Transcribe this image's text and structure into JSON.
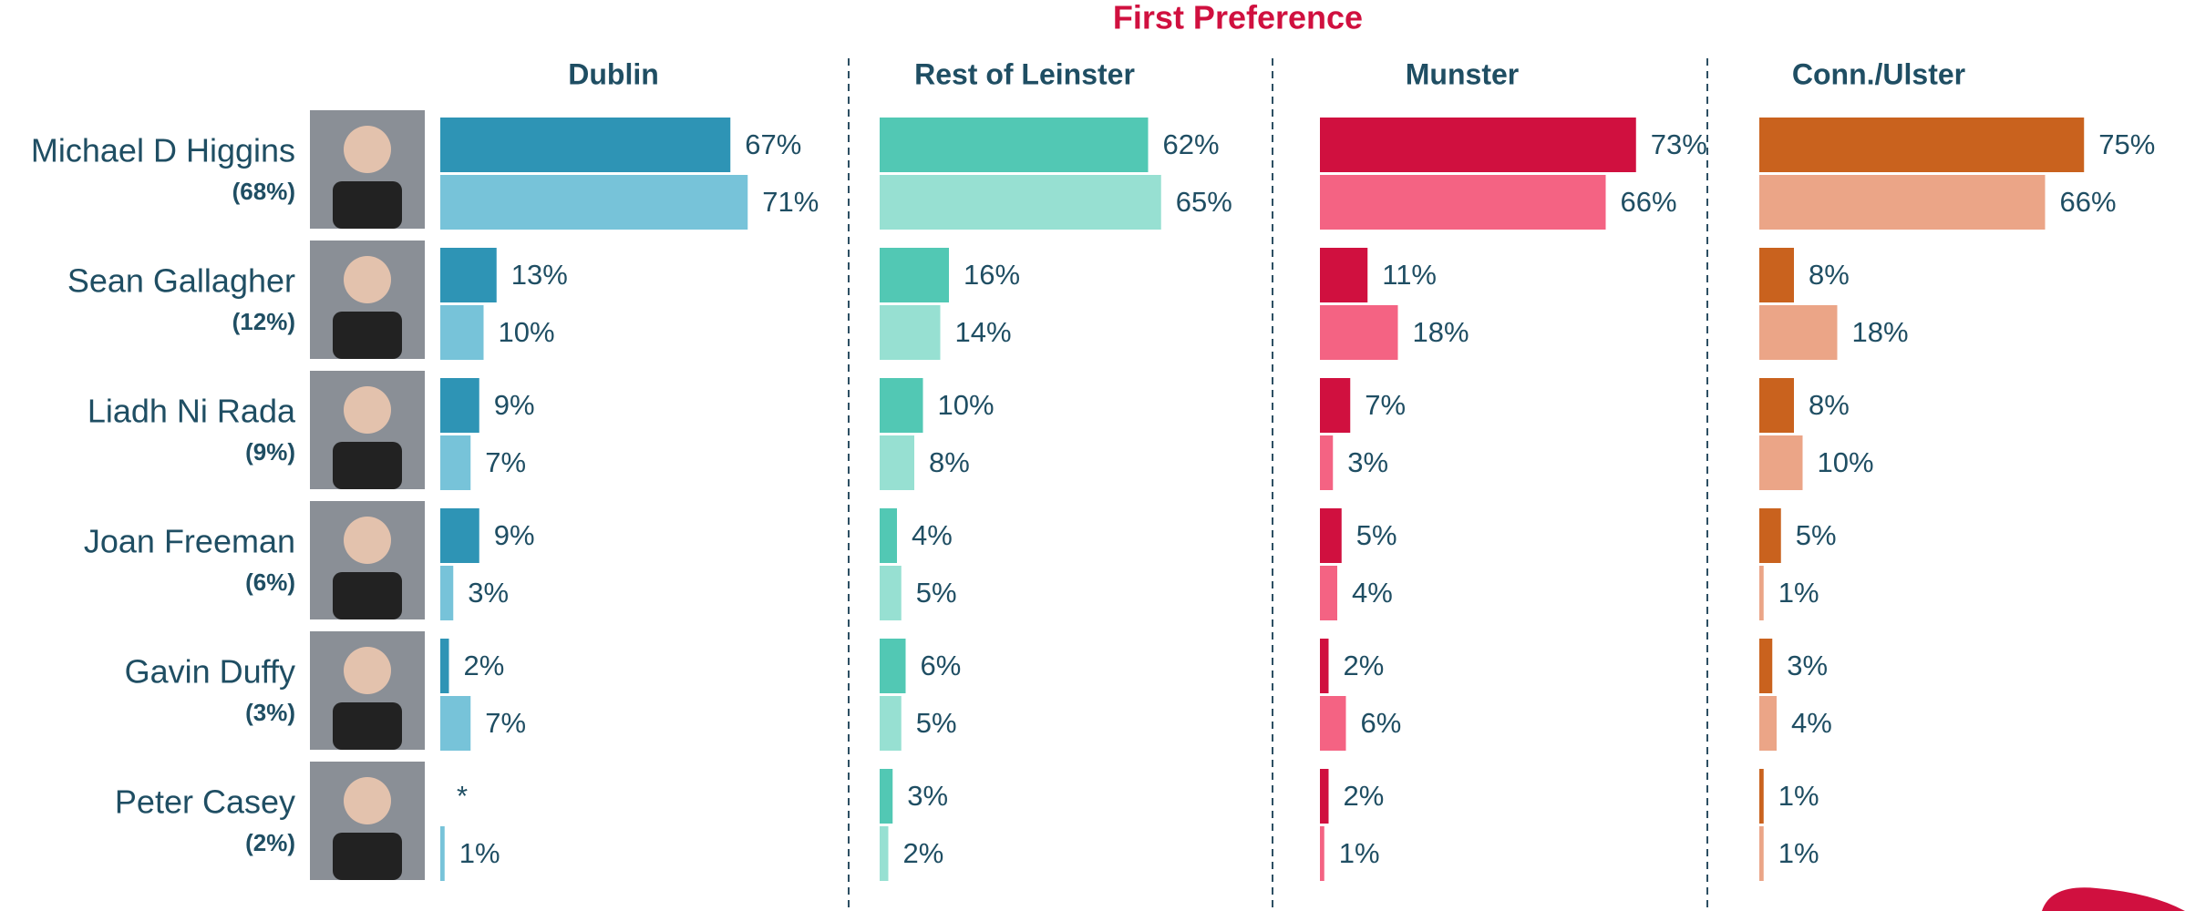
{
  "chart_data": {
    "type": "bar",
    "orientation": "horizontal",
    "title": "First Preference",
    "categories": [
      "Michael D Higgins",
      "Sean Gallagher",
      "Liadh Ni Rada",
      "Joan Freeman",
      "Gavin Duffy",
      "Peter Casey"
    ],
    "category_notes": [
      "(68%)",
      "(12%)",
      "(9%)",
      "(6%)",
      "(3%)",
      "(2%)"
    ],
    "panels": [
      {
        "title": "Dublin",
        "series": [
          {
            "color": "#2e94b5",
            "values": [
              67,
              13,
              9,
              9,
              2,
              null
            ],
            "value_labels": [
              "67%",
              "13%",
              "9%",
              "9%",
              "2%",
              "*"
            ]
          },
          {
            "color": "#77c3d9",
            "values": [
              71,
              10,
              7,
              3,
              7,
              1
            ],
            "value_labels": [
              "71%",
              "10%",
              "7%",
              "3%",
              "7%",
              "1%"
            ]
          }
        ]
      },
      {
        "title": "Rest of Leinster",
        "series": [
          {
            "color": "#52c8b4",
            "values": [
              62,
              16,
              10,
              4,
              6,
              3
            ],
            "value_labels": [
              "62%",
              "16%",
              "10%",
              "4%",
              "6%",
              "3%"
            ]
          },
          {
            "color": "#97e0d2",
            "values": [
              65,
              14,
              8,
              5,
              5,
              2
            ],
            "value_labels": [
              "65%",
              "14%",
              "8%",
              "5%",
              "5%",
              "2%"
            ]
          }
        ]
      },
      {
        "title": "Munster",
        "series": [
          {
            "color": "#d0103f",
            "values": [
              73,
              11,
              7,
              5,
              2,
              2
            ],
            "value_labels": [
              "73%",
              "11%",
              "7%",
              "5%",
              "2%",
              "2%"
            ]
          },
          {
            "color": "#f46383",
            "values": [
              66,
              18,
              3,
              4,
              6,
              1
            ],
            "value_labels": [
              "66%",
              "18%",
              "3%",
              "4%",
              "6%",
              "1%"
            ]
          }
        ]
      },
      {
        "title": "Conn./Ulster",
        "series": [
          {
            "color": "#c9621e",
            "values": [
              75,
              8,
              8,
              5,
              3,
              1
            ],
            "value_labels": [
              "75%",
              "8%",
              "8%",
              "5%",
              "3%",
              "1%"
            ]
          },
          {
            "color": "#eba587",
            "values": [
              66,
              18,
              10,
              1,
              4,
              1
            ],
            "value_labels": [
              "66%",
              "18%",
              "10%",
              "1%",
              "4%",
              "1%"
            ]
          }
        ]
      }
    ]
  }
}
